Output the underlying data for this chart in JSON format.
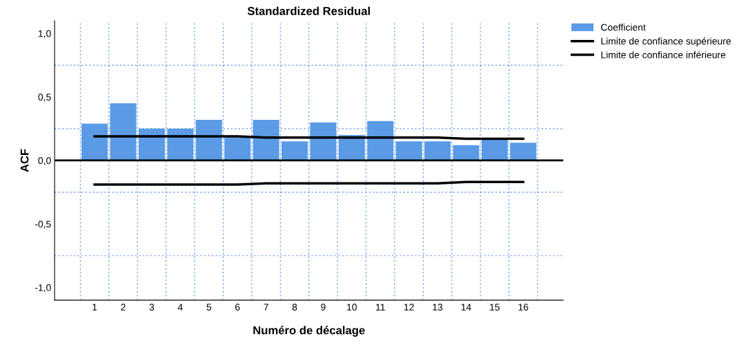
{
  "chart_data": {
    "type": "bar",
    "title": "Standardized Residual",
    "xlabel": "Numéro de décalage",
    "ylabel": "ACF",
    "categories": [
      "1",
      "2",
      "3",
      "4",
      "5",
      "6",
      "7",
      "8",
      "9",
      "10",
      "11",
      "12",
      "13",
      "14",
      "15",
      "16"
    ],
    "series": [
      {
        "name": "Coefficient",
        "color": "#5b9be6",
        "values": [
          0.29,
          0.45,
          0.25,
          0.25,
          0.32,
          0.18,
          0.32,
          0.15,
          0.3,
          0.2,
          0.31,
          0.15,
          0.15,
          0.12,
          0.17,
          0.14
        ]
      },
      {
        "name": "Limite de confiance supérieure",
        "type": "line",
        "color": "#000000",
        "values": [
          0.19,
          0.19,
          0.19,
          0.19,
          0.19,
          0.19,
          0.18,
          0.18,
          0.18,
          0.18,
          0.18,
          0.18,
          0.18,
          0.17,
          0.17,
          0.17
        ]
      },
      {
        "name": "Limite de confiance inférieure",
        "type": "line",
        "color": "#000000",
        "values": [
          -0.19,
          -0.19,
          -0.19,
          -0.19,
          -0.19,
          -0.19,
          -0.18,
          -0.18,
          -0.18,
          -0.18,
          -0.18,
          -0.18,
          -0.18,
          -0.17,
          -0.17,
          -0.17
        ]
      }
    ],
    "ylim": [
      -1.1,
      1.1
    ],
    "yticks": [
      {
        "value": -1,
        "label": "-1,0"
      },
      {
        "value": -0.75,
        "label": null
      },
      {
        "value": -0.5,
        "label": "-0,5"
      },
      {
        "value": -0.25,
        "label": null
      },
      {
        "value": 0,
        "label": "0,0"
      },
      {
        "value": 0.25,
        "label": null
      },
      {
        "value": 0.5,
        "label": "0,5"
      },
      {
        "value": 0.75,
        "label": null
      },
      {
        "value": 1,
        "label": "1,0"
      }
    ],
    "ref_lines": [
      {
        "axis": "y",
        "value": 0,
        "color": "#000000"
      }
    ],
    "grid": true,
    "legend": "top right",
    "marker": "none",
    "line_style": "solid"
  }
}
